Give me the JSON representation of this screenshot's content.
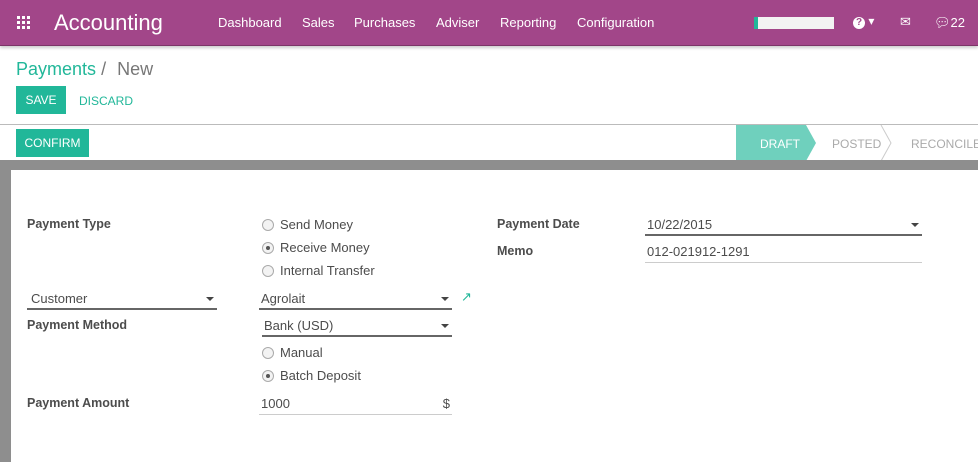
{
  "navbar": {
    "app_title": "Accounting",
    "menu": [
      "Dashboard",
      "Sales",
      "Purchases",
      "Adviser",
      "Reporting",
      "Configuration"
    ],
    "messages_count": "22",
    "color": "#a24689"
  },
  "breadcrumb": {
    "parent": "Payments",
    "separator": "/",
    "current": "New"
  },
  "buttons": {
    "save": "SAVE",
    "discard": "DISCARD",
    "confirm": "CONFIRM"
  },
  "statusbar": {
    "stages": [
      "DRAFT",
      "POSTED",
      "RECONCILED"
    ],
    "active": "DRAFT"
  },
  "form": {
    "payment_type_label": "Payment Type",
    "payment_type_options": [
      "Send Money",
      "Receive Money",
      "Internal Transfer"
    ],
    "payment_type_selected": "Receive Money",
    "partner_type": "Customer",
    "partner": "Agrolait",
    "payment_method_label": "Payment Method",
    "journal": "Bank (USD)",
    "method_options": [
      "Manual",
      "Batch Deposit"
    ],
    "method_selected": "Batch Deposit",
    "amount_label": "Payment Amount",
    "amount": "1000",
    "currency_symbol": "$",
    "date_label": "Payment Date",
    "date": "10/22/2015",
    "memo_label": "Memo",
    "memo": "012-021912-1291"
  }
}
